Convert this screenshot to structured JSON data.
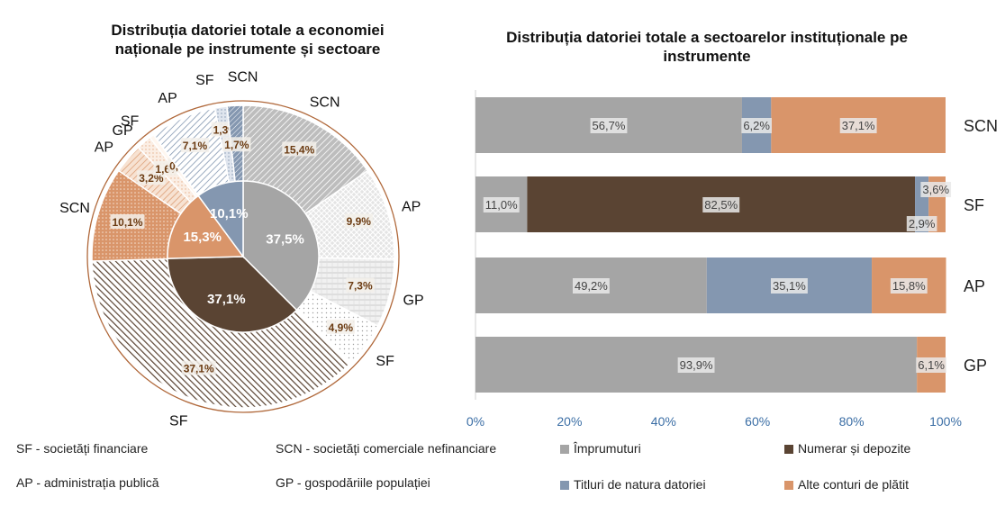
{
  "left_chart": {
    "title_line1": "Distribuția datoriei totale a economiei",
    "title_line2": "naționale  pe instrumente și sectoare"
  },
  "right_chart": {
    "title_line1": "Distribuția datoriei totale a sectoarelor instituționale pe",
    "title_line2": "instrumente"
  },
  "legend_sectors": [
    {
      "text": "SF - societăți financiare"
    },
    {
      "text": "SCN - societăți comerciale nefinanciare"
    },
    {
      "text": "AP - administrația publică"
    },
    {
      "text": "GP - gospodăriile populației"
    }
  ],
  "legend_instruments": [
    {
      "text": "Împrumuturi",
      "color": "#a5a5a5"
    },
    {
      "text": "Numerar și depozite",
      "color": "#5a4433"
    },
    {
      "text": "Titluri de natura datoriei",
      "color": "#8497b0"
    },
    {
      "text": "Alte conturi de plătit",
      "color": "#d9956a"
    }
  ],
  "chart_data": [
    {
      "type": "pie",
      "title": "Distribuția datoriei totale a economiei naționale  pe instrumente și sectoare",
      "inner_ring": [
        {
          "name": "Împrumuturi",
          "value": 37.5,
          "label": "37,5%",
          "color": "#a5a5a5"
        },
        {
          "name": "Numerar și depozite",
          "value": 37.1,
          "label": "37,1%",
          "color": "#5a4433"
        },
        {
          "name": "Alte conturi de plătit",
          "value": 15.3,
          "label": "15,3%",
          "color": "#d9956a"
        },
        {
          "name": "Titluri de natura datoriei",
          "value": 10.1,
          "label": "10,1%",
          "color": "#8497b0"
        }
      ],
      "outer_ring": [
        {
          "instrument": "Împrumuturi",
          "sector": "SCN",
          "value": 15.4,
          "label": "15,4%"
        },
        {
          "instrument": "Împrumuturi",
          "sector": "AP",
          "value": 9.9,
          "label": "9,9%"
        },
        {
          "instrument": "Împrumuturi",
          "sector": "GP",
          "value": 7.3,
          "label": "7,3%"
        },
        {
          "instrument": "Împrumuturi",
          "sector": "SF",
          "value": 4.9,
          "label": "4,9%"
        },
        {
          "instrument": "Numerar și depozite",
          "sector": "SF",
          "value": 37.1,
          "label": "37,1%"
        },
        {
          "instrument": "Alte conturi de plătit",
          "sector": "SCN",
          "value": 10.1,
          "label": "10,1%"
        },
        {
          "instrument": "Alte conturi de plătit",
          "sector": "AP",
          "value": 3.2,
          "label": "3,2%"
        },
        {
          "instrument": "Alte conturi de plătit",
          "sector": "GP",
          "value": 1.6,
          "label": "1,6%"
        },
        {
          "instrument": "Alte conturi de plătit",
          "sector": "SF",
          "value": 0.5,
          "label": "0,5%"
        },
        {
          "instrument": "Titluri de natura datoriei",
          "sector": "AP",
          "value": 7.1,
          "label": "7,1%"
        },
        {
          "instrument": "Titluri de natura datoriei",
          "sector": "SF",
          "value": 1.3,
          "label": "1,3%"
        },
        {
          "instrument": "Titluri de natura datoriei",
          "sector": "SCN",
          "value": 1.7,
          "label": "1,7%"
        }
      ]
    },
    {
      "type": "bar",
      "orientation": "horizontal-stacked-100",
      "title": "Distribuția datoriei totale a sectoarelor instituționale pe instrumente",
      "categories": [
        "SCN",
        "SF",
        "AP",
        "GP"
      ],
      "x_ticks": [
        "0%",
        "20%",
        "40%",
        "60%",
        "80%",
        "100%"
      ],
      "xlim": [
        0,
        100
      ],
      "series": [
        {
          "name": "Împrumuturi",
          "color": "#a5a5a5",
          "values": [
            56.7,
            11.0,
            49.2,
            93.9
          ],
          "labels": [
            "56,7%",
            "11,0%",
            "49,2%",
            "93,9%"
          ]
        },
        {
          "name": "Numerar și depozite",
          "color": "#5a4433",
          "values": [
            0,
            82.5,
            0,
            0
          ],
          "labels": [
            "",
            "82,5%",
            "",
            ""
          ]
        },
        {
          "name": "Titluri de natura datoriei",
          "color": "#8497b0",
          "values": [
            6.2,
            2.9,
            35.1,
            0
          ],
          "labels": [
            "6,2%",
            "2,9%",
            "35,1%",
            ""
          ]
        },
        {
          "name": "Alte conturi de plătit",
          "color": "#d9956a",
          "values": [
            37.1,
            3.6,
            15.8,
            6.1
          ],
          "labels": [
            "37,1%",
            "3,6%",
            "15,8%",
            "6,1%"
          ]
        }
      ]
    }
  ]
}
